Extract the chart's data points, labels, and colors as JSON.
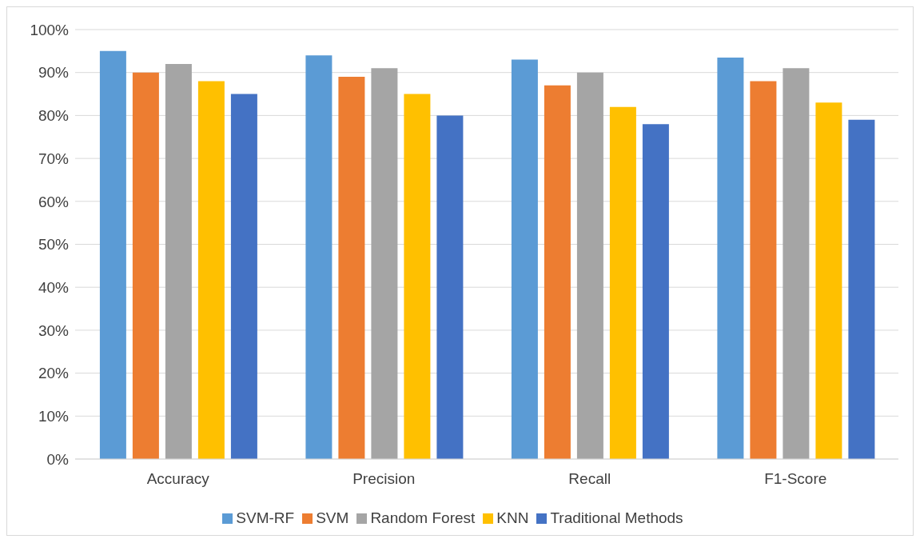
{
  "chart_data": {
    "type": "bar",
    "categories": [
      "Accuracy",
      "Precision",
      "Recall",
      "F1-Score"
    ],
    "series": [
      {
        "name": "SVM-RF",
        "color": "#5b9bd5",
        "values": [
          95,
          94,
          93,
          93.5
        ]
      },
      {
        "name": "SVM",
        "color": "#ed7d31",
        "values": [
          90,
          89,
          87,
          88
        ]
      },
      {
        "name": "Random Forest",
        "color": "#a5a5a5",
        "values": [
          92,
          91,
          90,
          91
        ]
      },
      {
        "name": "KNN",
        "color": "#ffc000",
        "values": [
          88,
          85,
          82,
          83
        ]
      },
      {
        "name": "Traditional Methods",
        "color": "#4472c4",
        "values": [
          85,
          80,
          78,
          79
        ]
      }
    ],
    "ylim": [
      0,
      100
    ],
    "yticks": [
      {
        "value": 0,
        "label": "0%"
      },
      {
        "value": 10,
        "label": "10%"
      },
      {
        "value": 20,
        "label": "20%"
      },
      {
        "value": 30,
        "label": "30%"
      },
      {
        "value": 40,
        "label": "40%"
      },
      {
        "value": 50,
        "label": "50%"
      },
      {
        "value": 60,
        "label": "60%"
      },
      {
        "value": 70,
        "label": "70%"
      },
      {
        "value": 80,
        "label": "80%"
      },
      {
        "value": 90,
        "label": "90%"
      },
      {
        "value": 100,
        "label": "100%"
      }
    ],
    "grid": "y",
    "legend": "bottom"
  }
}
